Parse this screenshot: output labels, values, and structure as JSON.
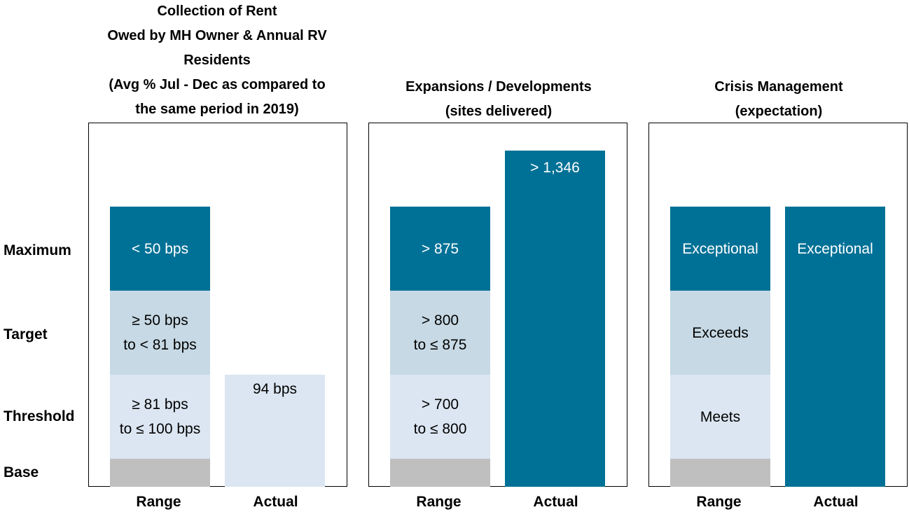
{
  "row_labels": {
    "maximum": "Maximum",
    "target": "Target",
    "threshold": "Threshold",
    "base": "Base"
  },
  "colors": {
    "maximum": "#007196",
    "target": "#c6d9e4",
    "threshold": "#dce6f2",
    "base": "#bfbfbf"
  },
  "chart_data": [
    {
      "type": "bar",
      "title": "Collection of Rent\nOwed by MH Owner & Annual RV\nResidents\n(Avg % Jul - Dec as compared to\nthe same period in 2019)",
      "categories": [
        "Range",
        "Actual"
      ],
      "range": {
        "levels": [
          "Base",
          "Threshold",
          "Target",
          "Maximum"
        ],
        "labels": [
          "",
          "≥ 81 bps\nto ≤ 100 bps",
          "≥ 50 bps\nto < 81 bps",
          "< 50 bps"
        ]
      },
      "actual": {
        "level": "Threshold",
        "label": "94 bps"
      }
    },
    {
      "type": "bar",
      "title": "Expansions / Developments\n(sites delivered)",
      "categories": [
        "Range",
        "Actual"
      ],
      "range": {
        "levels": [
          "Base",
          "Threshold",
          "Target",
          "Maximum"
        ],
        "labels": [
          "",
          "> 700\nto ≤ 800",
          "> 800\nto ≤ 875",
          "> 875"
        ]
      },
      "actual": {
        "level": "Above Maximum",
        "label": "> 1,346"
      }
    },
    {
      "type": "bar",
      "title": "Crisis Management\n(expectation)",
      "categories": [
        "Range",
        "Actual"
      ],
      "range": {
        "levels": [
          "Base",
          "Threshold",
          "Target",
          "Maximum"
        ],
        "labels": [
          "",
          "Meets",
          "Exceeds",
          "Exceptional"
        ]
      },
      "actual": {
        "level": "Maximum",
        "label": "Exceptional"
      }
    }
  ]
}
